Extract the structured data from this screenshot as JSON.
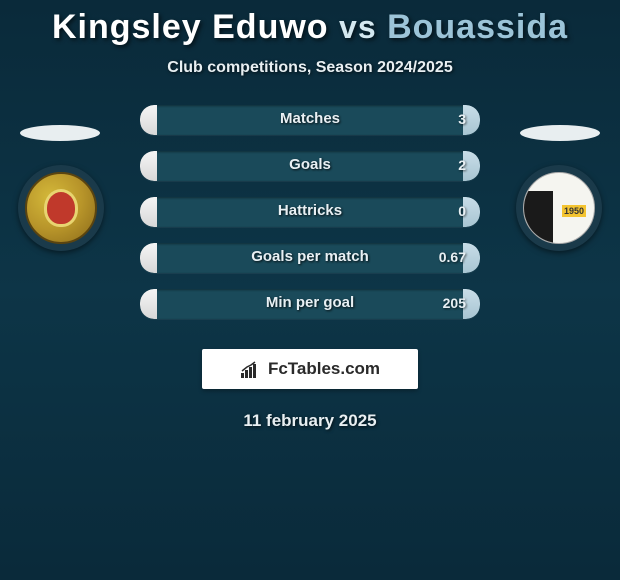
{
  "title": {
    "player1": "Kingsley Eduwo",
    "vs": "vs",
    "player2": "Bouassida"
  },
  "subtitle": "Club competitions, Season 2024/2025",
  "colors": {
    "background_gradient": [
      "#0a2a3a",
      "#0d3547",
      "#0a2a3a"
    ],
    "title_p1": "#ffffff",
    "title_p2": "#9cc4d8",
    "bar_track": "#1a4a5a",
    "bar_fill_left": "#e8e8e8",
    "bar_fill_right": "#b8d0dc",
    "brand_box_bg": "#ffffff"
  },
  "stats": [
    {
      "label": "Matches",
      "left_val": "",
      "right_val": "3",
      "left_pct": 5,
      "right_pct": 5
    },
    {
      "label": "Goals",
      "left_val": "",
      "right_val": "2",
      "left_pct": 5,
      "right_pct": 5
    },
    {
      "label": "Hattricks",
      "left_val": "",
      "right_val": "0",
      "left_pct": 5,
      "right_pct": 5
    },
    {
      "label": "Goals per match",
      "left_val": "",
      "right_val": "0.67",
      "left_pct": 5,
      "right_pct": 5
    },
    {
      "label": "Min per goal",
      "left_val": "",
      "right_val": "205",
      "left_pct": 5,
      "right_pct": 5
    }
  ],
  "brand_text": "FcTables.com",
  "date_text": "11 february 2025",
  "badge_left_name": "esperance-club-badge",
  "badge_right_name": "esm-club-badge"
}
